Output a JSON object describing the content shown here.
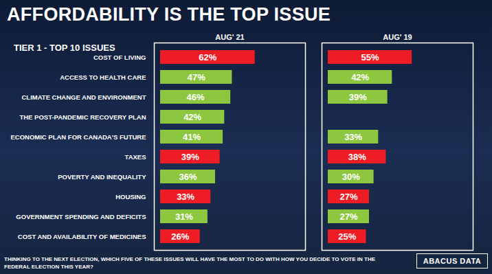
{
  "chart_data": {
    "type": "bar",
    "orientation": "horizontal",
    "title": "AFFORDABILITY IS THE TOP ISSUE",
    "subtitle": "TIER 1 - TOP 10 ISSUES",
    "categories": [
      "COST OF LIVING",
      "ACCESS TO HEALTH CARE",
      "CLIMATE CHANGE AND ENVIRONMENT",
      "THE POST-PANDEMIC RECOVERY PLAN",
      "ECONOMIC PLAN FOR CANADA'S FUTURE",
      "TAXES",
      "POVERTY AND INEQUALITY",
      "HOUSING",
      "GOVERNMENT SPENDING AND DEFICITS",
      "COST AND AVAILABILITY OF MEDICINES"
    ],
    "series": [
      {
        "name": "AUG' 21",
        "values": [
          62,
          47,
          46,
          42,
          41,
          39,
          36,
          33,
          31,
          26
        ],
        "value_labels": [
          "62%",
          "47%",
          "46%",
          "42%",
          "41%",
          "39%",
          "36%",
          "33%",
          "31%",
          "26%"
        ],
        "colors": [
          "#ee1c25",
          "#8dc63f",
          "#8dc63f",
          "#8dc63f",
          "#8dc63f",
          "#ee1c25",
          "#8dc63f",
          "#ee1c25",
          "#8dc63f",
          "#ee1c25"
        ]
      },
      {
        "name": "AUG' 19",
        "values": [
          55,
          42,
          39,
          null,
          33,
          38,
          30,
          27,
          27,
          25
        ],
        "value_labels": [
          "55%",
          "42%",
          "39%",
          null,
          "33%",
          "38%",
          "30%",
          "27%",
          "27%",
          "25%"
        ],
        "colors": [
          "#ee1c25",
          "#8dc63f",
          "#8dc63f",
          null,
          "#8dc63f",
          "#ee1c25",
          "#8dc63f",
          "#ee1c25",
          "#8dc63f",
          "#ee1c25"
        ]
      }
    ],
    "xlim": [
      0,
      95
    ],
    "xticks": [],
    "data_labels": true,
    "tick_labels": "y",
    "caption": "THINKING TO THE NEXT ELECTION, WHICH FIVE OF THESE ISSUES WILL HAVE THE MOST TO DO WITH HOW YOU DECIDE TO VOTE IN THE FEDERAL ELECTION THIS YEAR?",
    "source": "ABACUS DATA"
  }
}
